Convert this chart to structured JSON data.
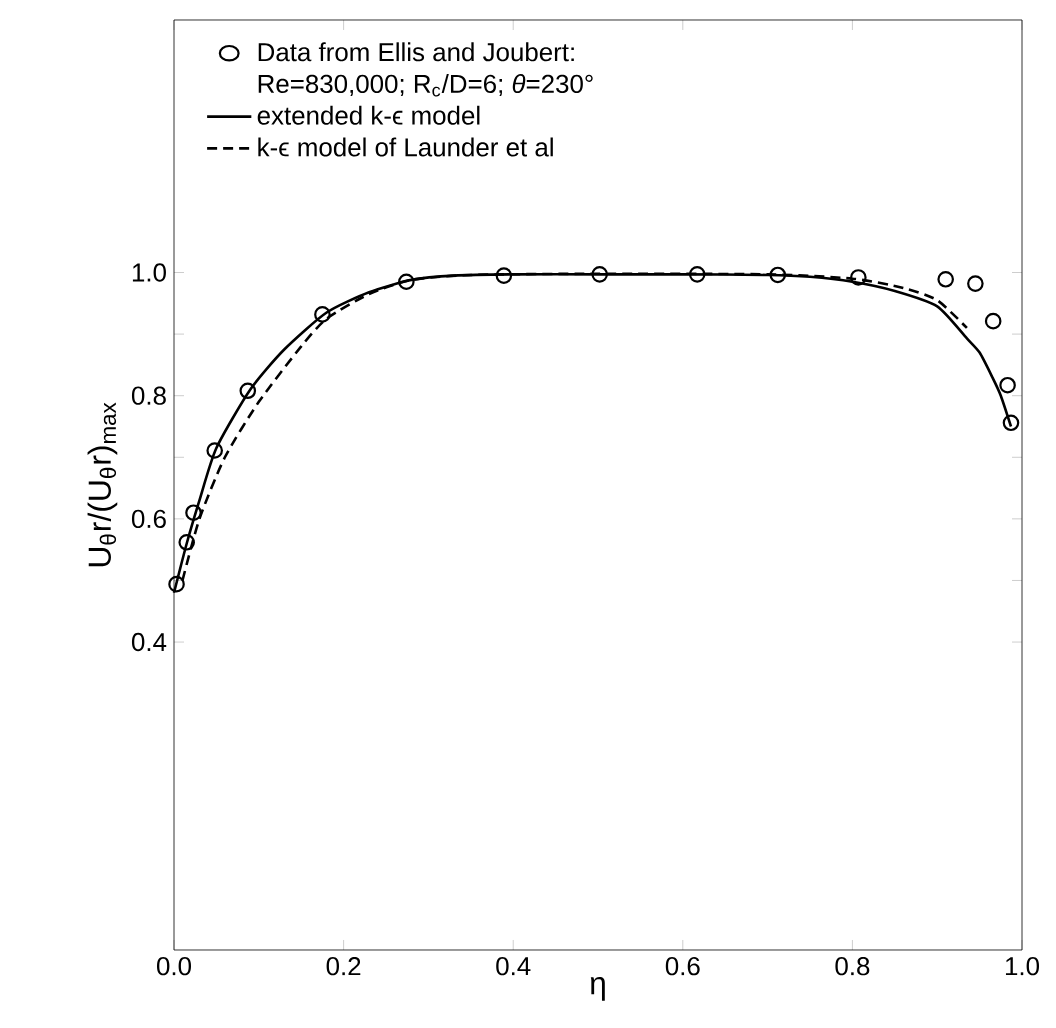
{
  "chart_data": {
    "type": "line",
    "xlabel": "η",
    "ylabel": "U$_{θ}$r/(U$_{θ}$r)$_{max}$",
    "xlim": [
      0,
      1.0
    ],
    "ylim": [
      -0.1,
      1.41
    ],
    "xticks": [
      {
        "value": 0,
        "label": "0.0"
      },
      {
        "value": 0.2,
        "label": "0.2"
      },
      {
        "value": 0.4,
        "label": "0.4"
      },
      {
        "value": 0.6,
        "label": "0.6"
      },
      {
        "value": 0.8,
        "label": "0.8"
      },
      {
        "value": 1.0,
        "label": "1.0"
      }
    ],
    "yticks": [
      {
        "value": 0.4,
        "label": "0.4"
      },
      {
        "value": 0.5,
        "label": null
      },
      {
        "value": 0.6,
        "label": "0.6"
      },
      {
        "value": 0.7,
        "label": null
      },
      {
        "value": 0.8,
        "label": "0.8"
      },
      {
        "value": 0.9,
        "label": null
      },
      {
        "value": 1.0,
        "label": "1.0"
      }
    ],
    "legend": "top left",
    "annotations": [
      "Re=830,000; R$_{c}$/D=6; *θ*=230°"
    ],
    "series": [
      {
        "name": "Data from Ellis and Joubert:",
        "type": "scatter",
        "marker": "circle",
        "color": "#000000",
        "x": [
          0.003,
          0.015,
          0.023,
          0.048,
          0.087,
          0.175,
          0.274,
          0.389,
          0.502,
          0.617,
          0.712,
          0.807,
          0.91,
          0.945,
          0.966,
          0.983,
          0.987
        ],
        "values": [
          0.494,
          0.562,
          0.61,
          0.711,
          0.808,
          0.932,
          0.985,
          0.995,
          0.997,
          0.997,
          0.996,
          0.992,
          0.989,
          0.982,
          0.921,
          0.817,
          0.756
        ]
      },
      {
        "name": "extended k-ϵ model",
        "line_style": "solid",
        "color": "#000000",
        "x": [
          0.0,
          0.015,
          0.03,
          0.05,
          0.09,
          0.13,
          0.18,
          0.23,
          0.28,
          0.33,
          0.4,
          0.5,
          0.6,
          0.7,
          0.75,
          0.8,
          0.85,
          0.9,
          0.935,
          0.95,
          0.965,
          0.975,
          0.987
        ],
        "values": [
          0.48,
          0.56,
          0.63,
          0.715,
          0.81,
          0.875,
          0.935,
          0.968,
          0.988,
          0.995,
          0.997,
          0.997,
          0.997,
          0.996,
          0.993,
          0.985,
          0.97,
          0.945,
          0.893,
          0.87,
          0.83,
          0.8,
          0.75
        ]
      },
      {
        "name": "k-ϵ model of Launder et al",
        "line_style": "dashed",
        "color": "#000000",
        "x": [
          0.01,
          0.03,
          0.06,
          0.1,
          0.15,
          0.18,
          0.23,
          0.28,
          0.35,
          0.5,
          0.7,
          0.8,
          0.86,
          0.9,
          0.935
        ],
        "values": [
          0.5,
          0.6,
          0.7,
          0.79,
          0.88,
          0.925,
          0.965,
          0.988,
          0.996,
          0.998,
          0.997,
          0.99,
          0.975,
          0.955,
          0.91
        ]
      }
    ]
  }
}
